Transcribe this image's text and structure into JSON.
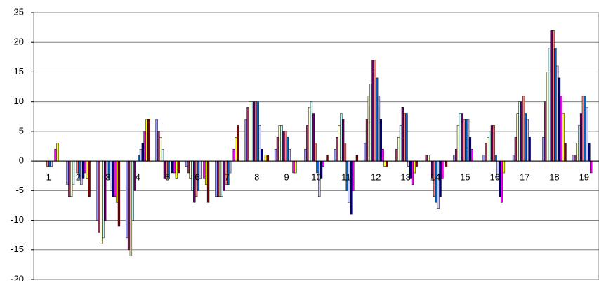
{
  "chart_data": {
    "type": "bar",
    "categories": [
      "1",
      "2",
      "3",
      "4",
      "5",
      "6",
      "7",
      "8",
      "9",
      "10",
      "11",
      "12",
      "13",
      "14",
      "15",
      "16",
      "17",
      "18",
      "19"
    ],
    "ylim": [
      -20,
      25
    ],
    "yticks": [
      -20,
      -15,
      -10,
      -5,
      0,
      5,
      10,
      15,
      20,
      25
    ],
    "grid": true,
    "series": [
      {
        "color": "#9999FF",
        "values": [
          0,
          -4,
          -10,
          -13,
          7,
          -1,
          -6,
          7,
          2,
          2,
          2,
          3,
          0,
          0,
          1,
          1,
          1,
          4,
          1
        ]
      },
      {
        "color": "#993366",
        "values": [
          0,
          -6,
          -12,
          -15,
          5,
          -2,
          -6,
          9,
          4,
          6,
          4,
          7,
          2,
          1,
          2,
          3,
          4,
          10,
          1
        ]
      },
      {
        "color": "#FFFFCC",
        "values": [
          0,
          -6,
          -14,
          -16,
          4,
          -3,
          -6,
          10,
          6,
          9,
          6,
          11,
          4,
          1,
          6,
          4,
          8,
          15,
          3
        ]
      },
      {
        "color": "#CCFFFF",
        "values": [
          0,
          -4,
          -13,
          -10,
          2,
          -5,
          -6,
          10,
          6,
          10,
          8,
          13,
          6,
          0,
          8,
          5,
          10,
          19,
          6
        ]
      },
      {
        "color": "#660066",
        "values": [
          0,
          0,
          -10,
          -5,
          -3,
          -7,
          -5,
          10,
          5,
          8,
          7,
          17,
          9,
          -3,
          8,
          6,
          10,
          22,
          8
        ]
      },
      {
        "color": "#FF8080",
        "values": [
          -1,
          -2,
          0,
          0,
          -3,
          -6,
          -4,
          10,
          5,
          3,
          3,
          17,
          8,
          -6,
          7,
          6,
          11,
          22,
          11
        ]
      },
      {
        "color": "#0066CC",
        "values": [
          -1,
          -3,
          -3,
          1,
          -3,
          -5,
          -4,
          10,
          4,
          -2,
          -5,
          14,
          8,
          -7,
          7,
          1,
          8,
          19,
          11
        ]
      },
      {
        "color": "#CCCCFF",
        "values": [
          -1,
          -4,
          -5,
          2,
          0,
          -3,
          -2,
          6,
          2,
          -6,
          -7,
          11,
          -1,
          -8,
          7,
          -3,
          7,
          16,
          9
        ]
      },
      {
        "color": "#000080",
        "values": [
          0,
          -3,
          -6,
          3,
          -2,
          0,
          0,
          2,
          0,
          -3,
          -9,
          7,
          -3,
          -6,
          4,
          -6,
          4,
          14,
          3
        ]
      },
      {
        "color": "#FF00FF",
        "values": [
          2,
          -2,
          -6,
          5,
          -2,
          -3,
          2,
          0,
          -2,
          -1,
          -5,
          2,
          -4,
          -3,
          2,
          -7,
          0,
          11,
          -2
        ]
      },
      {
        "color": "#FFFF00",
        "values": [
          3,
          -3,
          -7,
          7,
          -3,
          -4,
          4,
          1,
          -2,
          0,
          0,
          -1,
          -2,
          0,
          0,
          -2,
          0,
          8,
          0
        ]
      },
      {
        "color": "#800000",
        "values": [
          0,
          -6,
          -11,
          7,
          -2,
          -7,
          6,
          1,
          0,
          1,
          1,
          -1,
          -1,
          -1,
          0,
          0,
          0,
          3,
          0
        ]
      }
    ]
  }
}
